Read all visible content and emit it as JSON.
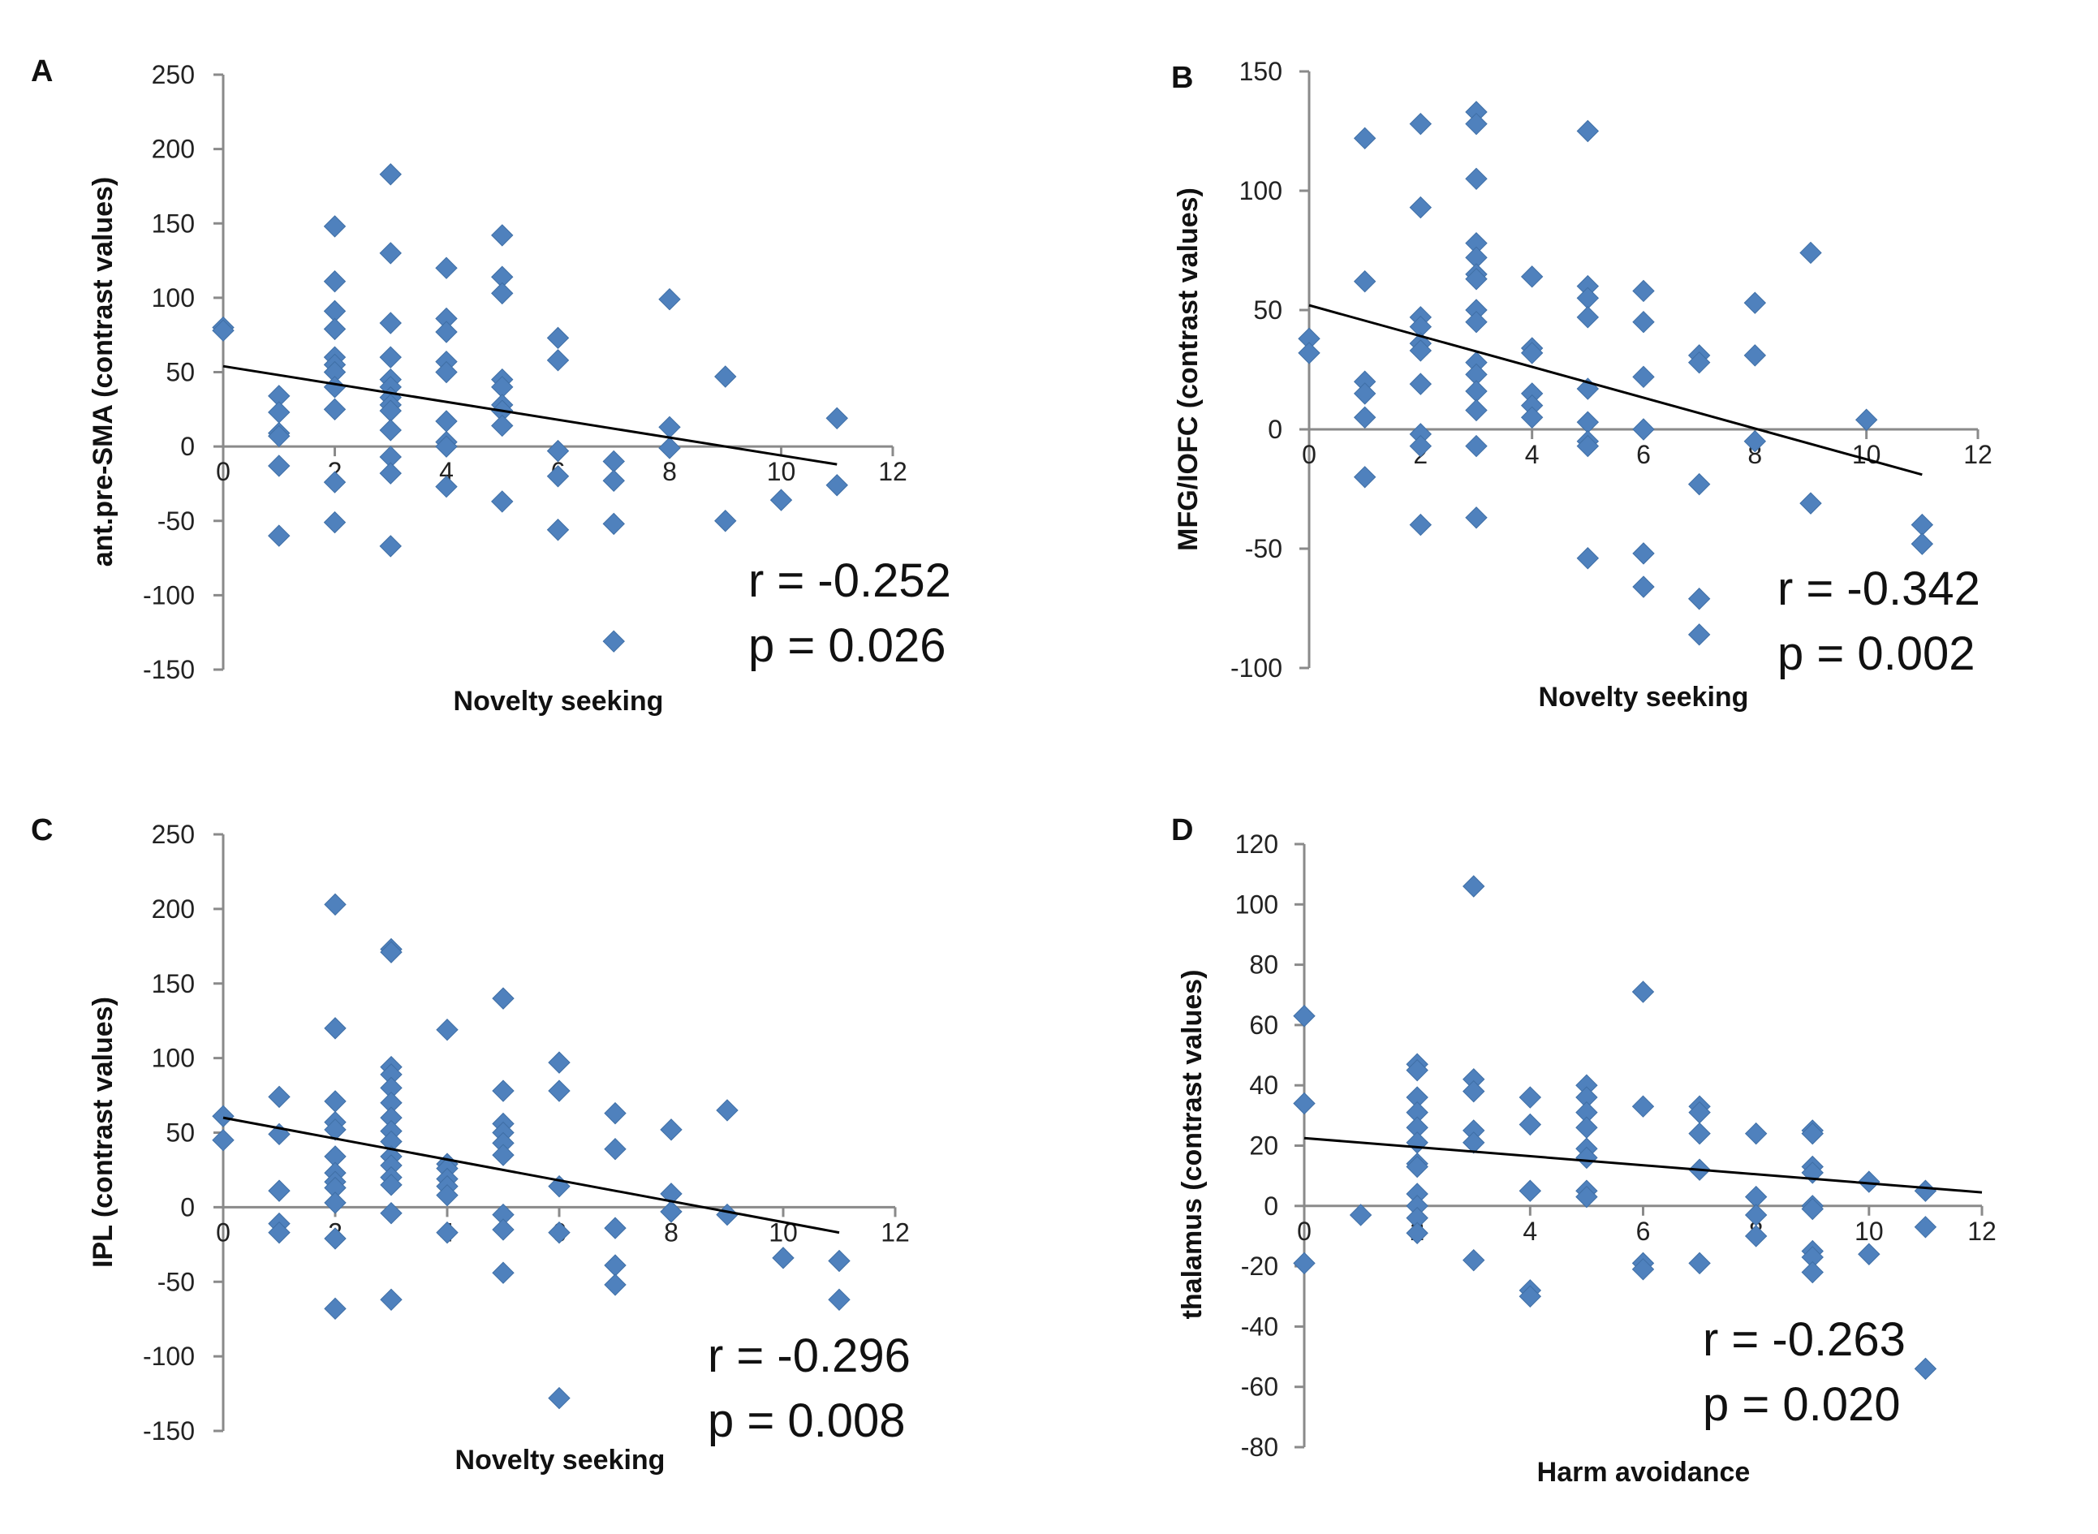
{
  "chart_data": [
    {
      "panel_label": "A",
      "type": "scatter",
      "xlabel": "Novelty seeking",
      "ylabel": "ant.pre-SMA (contrast values)",
      "xlim": [
        0,
        12
      ],
      "ylim": [
        -150,
        250
      ],
      "xticks": [
        0,
        2,
        4,
        6,
        8,
        10,
        12
      ],
      "yticks": [
        -150,
        -100,
        -50,
        0,
        50,
        100,
        150,
        200,
        250
      ],
      "color": "#4f81bd",
      "trendline": {
        "x": [
          0,
          11
        ],
        "y": [
          54,
          -12
        ]
      },
      "stats": {
        "r": "r = -0.252",
        "p": "p = 0.026"
      },
      "points": [
        [
          0,
          80
        ],
        [
          0,
          78
        ],
        [
          1,
          34
        ],
        [
          1,
          23
        ],
        [
          1,
          9
        ],
        [
          1,
          7
        ],
        [
          1,
          -13
        ],
        [
          1,
          -60
        ],
        [
          2,
          148
        ],
        [
          2,
          111
        ],
        [
          2,
          91
        ],
        [
          2,
          79
        ],
        [
          2,
          60
        ],
        [
          2,
          55
        ],
        [
          2,
          50
        ],
        [
          2,
          40
        ],
        [
          2,
          25
        ],
        [
          2,
          -24
        ],
        [
          2,
          -51
        ],
        [
          3,
          183
        ],
        [
          3,
          130
        ],
        [
          3,
          83
        ],
        [
          3,
          60
        ],
        [
          3,
          45
        ],
        [
          3,
          40
        ],
        [
          3,
          33
        ],
        [
          3,
          28
        ],
        [
          3,
          24
        ],
        [
          3,
          11
        ],
        [
          3,
          -7
        ],
        [
          3,
          -18
        ],
        [
          3,
          -67
        ],
        [
          4,
          120
        ],
        [
          4,
          86
        ],
        [
          4,
          77
        ],
        [
          4,
          57
        ],
        [
          4,
          50
        ],
        [
          4,
          17
        ],
        [
          4,
          3
        ],
        [
          4,
          0
        ],
        [
          4,
          -27
        ],
        [
          5,
          142
        ],
        [
          5,
          114
        ],
        [
          5,
          103
        ],
        [
          5,
          45
        ],
        [
          5,
          40
        ],
        [
          5,
          28
        ],
        [
          5,
          24
        ],
        [
          5,
          14
        ],
        [
          5,
          -37
        ],
        [
          6,
          73
        ],
        [
          6,
          58
        ],
        [
          6,
          -3
        ],
        [
          6,
          -20
        ],
        [
          6,
          -56
        ],
        [
          7,
          -10
        ],
        [
          7,
          -23
        ],
        [
          7,
          -52
        ],
        [
          7,
          -131
        ],
        [
          8,
          99
        ],
        [
          8,
          13
        ],
        [
          8,
          -1
        ],
        [
          9,
          47
        ],
        [
          9,
          -50
        ],
        [
          10,
          -36
        ],
        [
          11,
          19
        ],
        [
          11,
          -26
        ]
      ]
    },
    {
      "panel_label": "B",
      "type": "scatter",
      "xlabel": "Novelty seeking",
      "ylabel": "MFG/IOFC (contrast values)",
      "xlim": [
        0,
        12
      ],
      "ylim": [
        -100,
        150
      ],
      "xticks": [
        0,
        2,
        4,
        6,
        8,
        10,
        12
      ],
      "yticks": [
        -100,
        -50,
        0,
        50,
        100,
        150
      ],
      "color": "#4f81bd",
      "trendline": {
        "x": [
          0,
          11
        ],
        "y": [
          52,
          -19
        ]
      },
      "stats": {
        "r": "r = -0.342",
        "p": "p = 0.002"
      },
      "points": [
        [
          0,
          38
        ],
        [
          0,
          32
        ],
        [
          1,
          122
        ],
        [
          1,
          62
        ],
        [
          1,
          20
        ],
        [
          1,
          15
        ],
        [
          1,
          5
        ],
        [
          1,
          -20
        ],
        [
          2,
          128
        ],
        [
          2,
          93
        ],
        [
          2,
          47
        ],
        [
          2,
          43
        ],
        [
          2,
          36
        ],
        [
          2,
          33
        ],
        [
          2,
          19
        ],
        [
          2,
          -2
        ],
        [
          2,
          -7
        ],
        [
          2,
          -40
        ],
        [
          3,
          133
        ],
        [
          3,
          128
        ],
        [
          3,
          105
        ],
        [
          3,
          78
        ],
        [
          3,
          72
        ],
        [
          3,
          65
        ],
        [
          3,
          63
        ],
        [
          3,
          50
        ],
        [
          3,
          45
        ],
        [
          3,
          28
        ],
        [
          3,
          23
        ],
        [
          3,
          16
        ],
        [
          3,
          8
        ],
        [
          3,
          -7
        ],
        [
          3,
          -37
        ],
        [
          4,
          64
        ],
        [
          4,
          34
        ],
        [
          4,
          32
        ],
        [
          4,
          15
        ],
        [
          4,
          10
        ],
        [
          4,
          5
        ],
        [
          5,
          125
        ],
        [
          5,
          60
        ],
        [
          5,
          55
        ],
        [
          5,
          47
        ],
        [
          5,
          17
        ],
        [
          5,
          3
        ],
        [
          5,
          -5
        ],
        [
          5,
          -7
        ],
        [
          5,
          -54
        ],
        [
          6,
          58
        ],
        [
          6,
          45
        ],
        [
          6,
          22
        ],
        [
          6,
          0
        ],
        [
          6,
          -52
        ],
        [
          6,
          -66
        ],
        [
          7,
          31
        ],
        [
          7,
          28
        ],
        [
          7,
          -23
        ],
        [
          7,
          -71
        ],
        [
          7,
          -86
        ],
        [
          8,
          53
        ],
        [
          8,
          31
        ],
        [
          8,
          -5
        ],
        [
          9,
          74
        ],
        [
          9,
          -31
        ],
        [
          10,
          4
        ],
        [
          11,
          -40
        ],
        [
          11,
          -48
        ]
      ]
    },
    {
      "panel_label": "C",
      "type": "scatter",
      "xlabel": "Novelty seeking",
      "ylabel": "IPL (contrast values)",
      "xlim": [
        0,
        12
      ],
      "ylim": [
        -150,
        250
      ],
      "xticks": [
        0,
        2,
        4,
        6,
        8,
        10,
        12
      ],
      "yticks": [
        -150,
        -100,
        -50,
        0,
        50,
        100,
        150,
        200,
        250
      ],
      "color": "#4f81bd",
      "trendline": {
        "x": [
          0,
          11
        ],
        "y": [
          60,
          -17
        ]
      },
      "stats": {
        "r": "r = -0.296",
        "p": "p = 0.008"
      },
      "points": [
        [
          0,
          61
        ],
        [
          0,
          45
        ],
        [
          1,
          74
        ],
        [
          1,
          49
        ],
        [
          1,
          11
        ],
        [
          1,
          -11
        ],
        [
          1,
          -17
        ],
        [
          2,
          203
        ],
        [
          2,
          120
        ],
        [
          2,
          71
        ],
        [
          2,
          57
        ],
        [
          2,
          52
        ],
        [
          2,
          34
        ],
        [
          2,
          23
        ],
        [
          2,
          17
        ],
        [
          2,
          13
        ],
        [
          2,
          3
        ],
        [
          2,
          -21
        ],
        [
          2,
          -68
        ],
        [
          3,
          173
        ],
        [
          3,
          171
        ],
        [
          3,
          94
        ],
        [
          3,
          89
        ],
        [
          3,
          80
        ],
        [
          3,
          70
        ],
        [
          3,
          60
        ],
        [
          3,
          51
        ],
        [
          3,
          44
        ],
        [
          3,
          34
        ],
        [
          3,
          28
        ],
        [
          3,
          20
        ],
        [
          3,
          15
        ],
        [
          3,
          -4
        ],
        [
          3,
          -62
        ],
        [
          4,
          119
        ],
        [
          4,
          29
        ],
        [
          4,
          26
        ],
        [
          4,
          19
        ],
        [
          4,
          14
        ],
        [
          4,
          8
        ],
        [
          4,
          -17
        ],
        [
          5,
          140
        ],
        [
          5,
          78
        ],
        [
          5,
          56
        ],
        [
          5,
          50
        ],
        [
          5,
          43
        ],
        [
          5,
          35
        ],
        [
          5,
          -5
        ],
        [
          5,
          -15
        ],
        [
          5,
          -44
        ],
        [
          6,
          97
        ],
        [
          6,
          78
        ],
        [
          6,
          14
        ],
        [
          6,
          -17
        ],
        [
          6,
          -128
        ],
        [
          7,
          63
        ],
        [
          7,
          39
        ],
        [
          7,
          -14
        ],
        [
          7,
          -39
        ],
        [
          7,
          -52
        ],
        [
          8,
          52
        ],
        [
          8,
          9
        ],
        [
          8,
          -3
        ],
        [
          9,
          65
        ],
        [
          9,
          -5
        ],
        [
          10,
          -34
        ],
        [
          11,
          -36
        ],
        [
          11,
          -62
        ]
      ]
    },
    {
      "panel_label": "D",
      "type": "scatter",
      "xlabel": "Harm avoidance",
      "ylabel": "thalamus (contrast values)",
      "xlim": [
        0,
        12
      ],
      "ylim": [
        -80,
        120
      ],
      "xticks": [
        0,
        2,
        4,
        6,
        8,
        10,
        12
      ],
      "yticks": [
        -80,
        -60,
        -40,
        -20,
        0,
        20,
        40,
        60,
        80,
        100,
        120
      ],
      "color": "#4f81bd",
      "trendline": {
        "x": [
          0,
          12
        ],
        "y": [
          22.5,
          4.5
        ]
      },
      "stats": {
        "r": "r = -0.263",
        "p": "p = 0.020"
      },
      "points": [
        [
          0,
          63
        ],
        [
          0,
          34
        ],
        [
          0,
          -19
        ],
        [
          1,
          -3
        ],
        [
          2,
          47
        ],
        [
          2,
          45
        ],
        [
          2,
          36
        ],
        [
          2,
          31
        ],
        [
          2,
          26
        ],
        [
          2,
          21
        ],
        [
          2,
          14
        ],
        [
          2,
          13
        ],
        [
          2,
          4
        ],
        [
          2,
          0
        ],
        [
          2,
          -4
        ],
        [
          2,
          -9
        ],
        [
          3,
          106
        ],
        [
          3,
          42
        ],
        [
          3,
          38
        ],
        [
          3,
          25
        ],
        [
          3,
          21
        ],
        [
          3,
          -18
        ],
        [
          4,
          36
        ],
        [
          4,
          27
        ],
        [
          4,
          5
        ],
        [
          4,
          -28
        ],
        [
          4,
          -30
        ],
        [
          5,
          40
        ],
        [
          5,
          36
        ],
        [
          5,
          31
        ],
        [
          5,
          26
        ],
        [
          5,
          19
        ],
        [
          5,
          16
        ],
        [
          5,
          5
        ],
        [
          5,
          3
        ],
        [
          6,
          71
        ],
        [
          6,
          33
        ],
        [
          6,
          -19
        ],
        [
          6,
          -21
        ],
        [
          7,
          33
        ],
        [
          7,
          31
        ],
        [
          7,
          24
        ],
        [
          7,
          12
        ],
        [
          7,
          -19
        ],
        [
          8,
          24
        ],
        [
          8,
          3
        ],
        [
          8,
          -3
        ],
        [
          8,
          -10
        ],
        [
          9,
          25
        ],
        [
          9,
          24
        ],
        [
          9,
          13
        ],
        [
          9,
          11
        ],
        [
          9,
          0
        ],
        [
          9,
          -1
        ],
        [
          9,
          -15
        ],
        [
          9,
          -17
        ],
        [
          9,
          -22
        ],
        [
          10,
          8
        ],
        [
          10,
          -16
        ],
        [
          11,
          5
        ],
        [
          11,
          -7
        ],
        [
          11,
          -54
        ]
      ]
    }
  ]
}
